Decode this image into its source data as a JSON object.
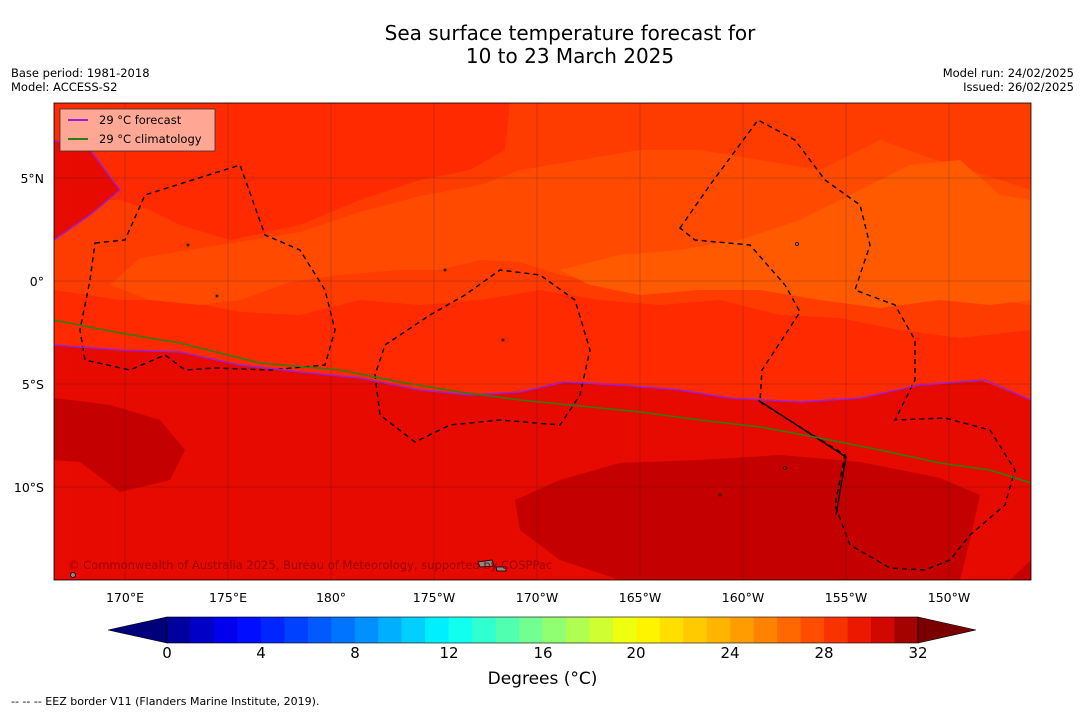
{
  "title": {
    "line1": "Sea surface temperature forecast for",
    "line2": "10 to 23 March 2025"
  },
  "meta_left": {
    "base_period": "Base period: 1981-2018",
    "model": "Model: ACCESS-S2"
  },
  "meta_right": {
    "model_run": "Model run: 24/02/2025",
    "issued": "Issued: 26/02/2025"
  },
  "legend": {
    "forecast": "29 °C  forecast",
    "climatology": "29 °C  climatology"
  },
  "copyright": "© Commonwealth of Australia 2025, Bureau of Meteorology, supported by COSPPac",
  "lat_labels": [
    "5°N",
    "0°",
    "5°S",
    "10°S"
  ],
  "lon_labels": [
    "170°E",
    "175°E",
    "180°",
    "175°W",
    "170°W",
    "165°W",
    "160°W",
    "155°W",
    "150°W"
  ],
  "colorbar": {
    "tick_labels": [
      "0",
      "4",
      "8",
      "12",
      "16",
      "20",
      "24",
      "28",
      "32"
    ],
    "title": "Degrees (°C)"
  },
  "footnote": "--  --  -- EEZ border V11 (Flanders Marine Institute, 2019).",
  "colors": {
    "forecast_line": "#9b1fd6",
    "climatology_line": "#2e7d12",
    "legend_bg": "#ffa795",
    "sst_28": "#ff4a00",
    "sst_29": "#ff2a00",
    "sst_30": "#e60a00",
    "sst_31": "#c40000"
  }
}
